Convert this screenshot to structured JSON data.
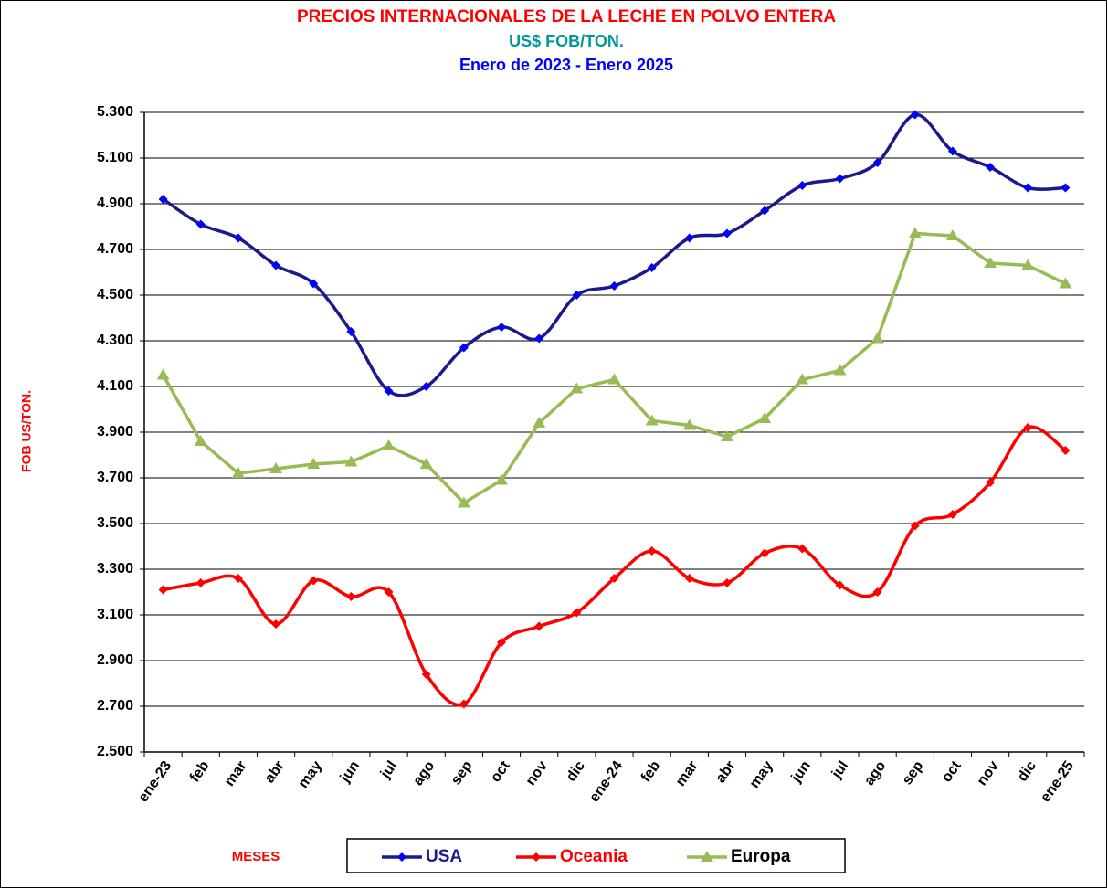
{
  "chart_data": {
    "type": "line",
    "title": "PRECIOS INTERNACIONALES DE  LA LECHE EN POLVO ENTERA",
    "subtitle": "US$ FOB/TON.",
    "subtitle2": "Enero de 2023 -  Enero 2025",
    "y_label": "FOB US/TON.",
    "x_label": "MESES",
    "categories": [
      "ene-23",
      "feb",
      "mar",
      "abr",
      "may",
      "jun",
      "jul",
      "ago",
      "sep",
      "oct",
      "nov",
      "dic",
      "ene-24",
      "feb",
      "mar",
      "abr",
      "may",
      "jun",
      "jul",
      "ago",
      "sep",
      "oct",
      "nov",
      "dic",
      "ene-25"
    ],
    "series": [
      {
        "name": "USA",
        "color": "#1a1a8c",
        "marker_color": "#0000ff",
        "marker": "diamond",
        "smooth": true,
        "values": [
          4920,
          4810,
          4750,
          4630,
          4550,
          4340,
          4080,
          4100,
          4270,
          4360,
          4310,
          4500,
          4540,
          4620,
          4750,
          4770,
          4870,
          4980,
          5010,
          5080,
          5290,
          5130,
          5060,
          4970,
          4970
        ]
      },
      {
        "name": "Oceania",
        "color": "#ff0000",
        "marker_color": "#ff0000",
        "marker": "diamond",
        "smooth": true,
        "values": [
          3210,
          3240,
          3260,
          3060,
          3250,
          3180,
          3200,
          2840,
          2710,
          2980,
          3050,
          3110,
          3260,
          3380,
          3260,
          3240,
          3370,
          3390,
          3230,
          3200,
          3490,
          3540,
          3680,
          3920,
          3820
        ]
      },
      {
        "name": "Europa",
        "color": "#99bb55",
        "marker_color": "#99bb55",
        "marker": "triangle",
        "smooth": false,
        "values": [
          4150,
          3860,
          3720,
          3740,
          3760,
          3770,
          3840,
          3760,
          3590,
          3690,
          3940,
          4090,
          4130,
          3950,
          3930,
          3880,
          3960,
          4130,
          4170,
          4310,
          4770,
          4760,
          4640,
          4630,
          4550
        ]
      }
    ],
    "ylim": [
      2500,
      5300
    ],
    "yticks": [
      {
        "value": 2500,
        "label": "2.500"
      },
      {
        "value": 2700,
        "label": "2.700"
      },
      {
        "value": 2900,
        "label": "2.900"
      },
      {
        "value": 3100,
        "label": "3.100"
      },
      {
        "value": 3300,
        "label": "3.300"
      },
      {
        "value": 3500,
        "label": "3.500"
      },
      {
        "value": 3700,
        "label": "3.700"
      },
      {
        "value": 3900,
        "label": "3.900"
      },
      {
        "value": 4100,
        "label": "4.100"
      },
      {
        "value": 4300,
        "label": "4.300"
      },
      {
        "value": 4500,
        "label": "4.500"
      },
      {
        "value": 4700,
        "label": "4.700"
      },
      {
        "value": 4900,
        "label": "4.900"
      },
      {
        "value": 5100,
        "label": "5.100"
      },
      {
        "value": 5300,
        "label": "5.300"
      }
    ],
    "grid": true,
    "legend": "bottom"
  }
}
